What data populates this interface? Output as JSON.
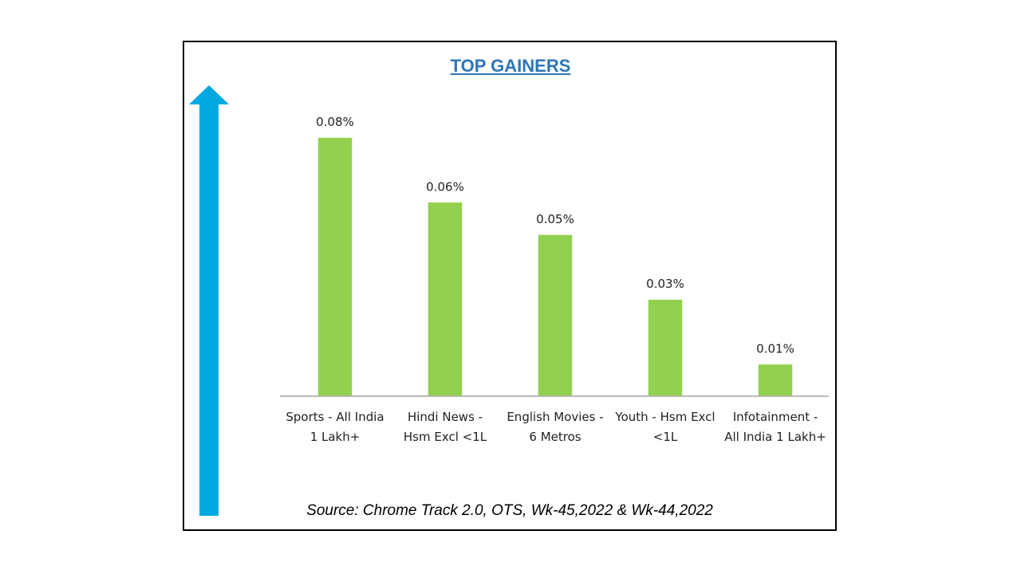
{
  "chart_data": {
    "type": "bar",
    "title": "TOP GAINERS",
    "categories": [
      [
        "Sports - All India",
        "1 Lakh+"
      ],
      [
        "Hindi News -",
        "Hsm Excl <1L"
      ],
      [
        "English Movies -",
        "6 Metros"
      ],
      [
        "Youth - Hsm Excl",
        "<1L"
      ],
      [
        "Infotainment -",
        "All India 1 Lakh+"
      ]
    ],
    "values": [
      0.08,
      0.06,
      0.05,
      0.03,
      0.01
    ],
    "data_labels": [
      "0.08%",
      "0.06%",
      "0.05%",
      "0.03%",
      "0.01%"
    ],
    "ylim": [
      0,
      0.09
    ],
    "grid": false,
    "colors": {
      "bar": "#92d050",
      "arrow": "#00a8e0",
      "title": "#2e75b6"
    }
  },
  "source_note": "Source: Chrome Track 2.0, OTS, Wk-45,2022 & Wk-44,2022"
}
